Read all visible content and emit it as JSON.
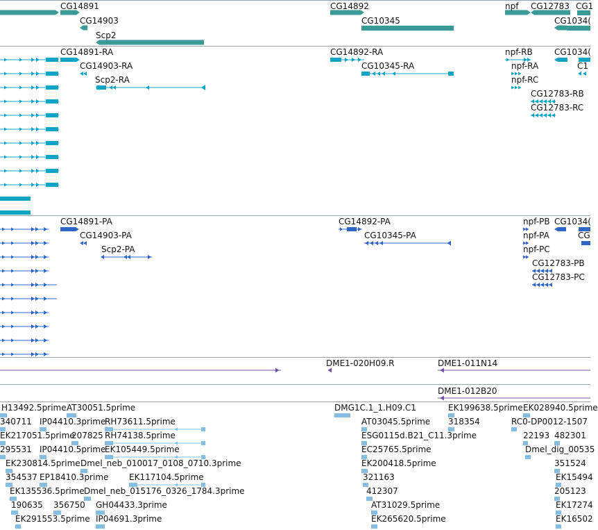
{
  "colors": {
    "gene": "#3a9a96",
    "transcript": "#12a4c4",
    "protein": "#2e66c8",
    "clone": "#7550a8",
    "est": "#86bde2",
    "border": "#9aa3aa"
  },
  "tracks": {
    "genes": {
      "labels": [
        {
          "t": "CG14891"
        },
        {
          "t": "CG14903"
        },
        {
          "t": "Scp2"
        },
        {
          "t": "CG14892"
        },
        {
          "t": "CG10345"
        },
        {
          "t": "npf"
        },
        {
          "t": "CG12783"
        },
        {
          "t": "CG1"
        },
        {
          "t": "CG1034("
        }
      ]
    },
    "transcripts": {
      "labels": [
        {
          "t": "CG14891-RA"
        },
        {
          "t": "CG14903-RA"
        },
        {
          "t": "Scp2-RA"
        },
        {
          "t": "CG14892-RA"
        },
        {
          "t": "CG10345-RA"
        },
        {
          "t": "npf-RB"
        },
        {
          "t": "npf-RA"
        },
        {
          "t": "npf-RC"
        },
        {
          "t": "CG12783-RB"
        },
        {
          "t": "CG12783-RC"
        },
        {
          "t": "CG1034("
        },
        {
          "t": "C1"
        }
      ]
    },
    "proteins": {
      "labels": [
        {
          "t": "CG14891-PA"
        },
        {
          "t": "CG14903-PA"
        },
        {
          "t": "Scp2-PA"
        },
        {
          "t": "CG14892-PA"
        },
        {
          "t": "CG10345-PA"
        },
        {
          "t": "npf-PB"
        },
        {
          "t": "npf-PA"
        },
        {
          "t": "npf-PC"
        },
        {
          "t": "CG12783-PB"
        },
        {
          "t": "CG12783-PC"
        },
        {
          "t": "CG1034("
        },
        {
          "t": "CG"
        }
      ]
    },
    "clones": {
      "labels": [
        {
          "t": "DME1-020H09.R"
        },
        {
          "t": "DME1-011N14"
        },
        {
          "t": "DME1-012B20"
        }
      ]
    },
    "ests": {
      "labels": [
        {
          "t": "H13492.5prime"
        },
        {
          "t": "AT30051.5prime"
        },
        {
          "t": "DMG1C.1_1.H09.C1"
        },
        {
          "t": "EK199638.5prime"
        },
        {
          "t": "EK028940.5prime"
        },
        {
          "t": "340711"
        },
        {
          "t": "IP04410.3prime"
        },
        {
          "t": "RH73611.5prime"
        },
        {
          "t": "AT03045.5prime"
        },
        {
          "t": "318354"
        },
        {
          "t": "RC0-DP0012-1507"
        },
        {
          "t": "EK217051.5prime"
        },
        {
          "t": "207825"
        },
        {
          "t": "RH74138.5prime"
        },
        {
          "t": "ESG0115d.B21_C11.3prime"
        },
        {
          "t": "22193"
        },
        {
          "t": "482301"
        },
        {
          "t": "295531"
        },
        {
          "t": "IP04410.5prime"
        },
        {
          "t": "EK105449.5prime"
        },
        {
          "t": "EC25765.5prime"
        },
        {
          "t": "Dmel_dig_00535"
        },
        {
          "t": "EK230814.5prime"
        },
        {
          "t": "Dmel_neb_010017_0108_0710.3prime"
        },
        {
          "t": "EK200418.5prime"
        },
        {
          "t": "351524"
        },
        {
          "t": "354537"
        },
        {
          "t": "EP18410.3prime"
        },
        {
          "t": "EK117104.5prime"
        },
        {
          "t": "321163"
        },
        {
          "t": "EK15494"
        },
        {
          "t": "EK135536.5prime"
        },
        {
          "t": "Dmel_neb_015176_0326_1784.3prime"
        },
        {
          "t": "412307"
        },
        {
          "t": "205123"
        },
        {
          "t": "190635"
        },
        {
          "t": "356750"
        },
        {
          "t": "GH04433.3prime"
        },
        {
          "t": "AT31029.5prime"
        },
        {
          "t": "EK17274"
        },
        {
          "t": "EK291553.5prime"
        },
        {
          "t": "IP04691.3prime"
        },
        {
          "t": "EK265620.5prime"
        },
        {
          "t": "EK16502"
        }
      ]
    }
  }
}
